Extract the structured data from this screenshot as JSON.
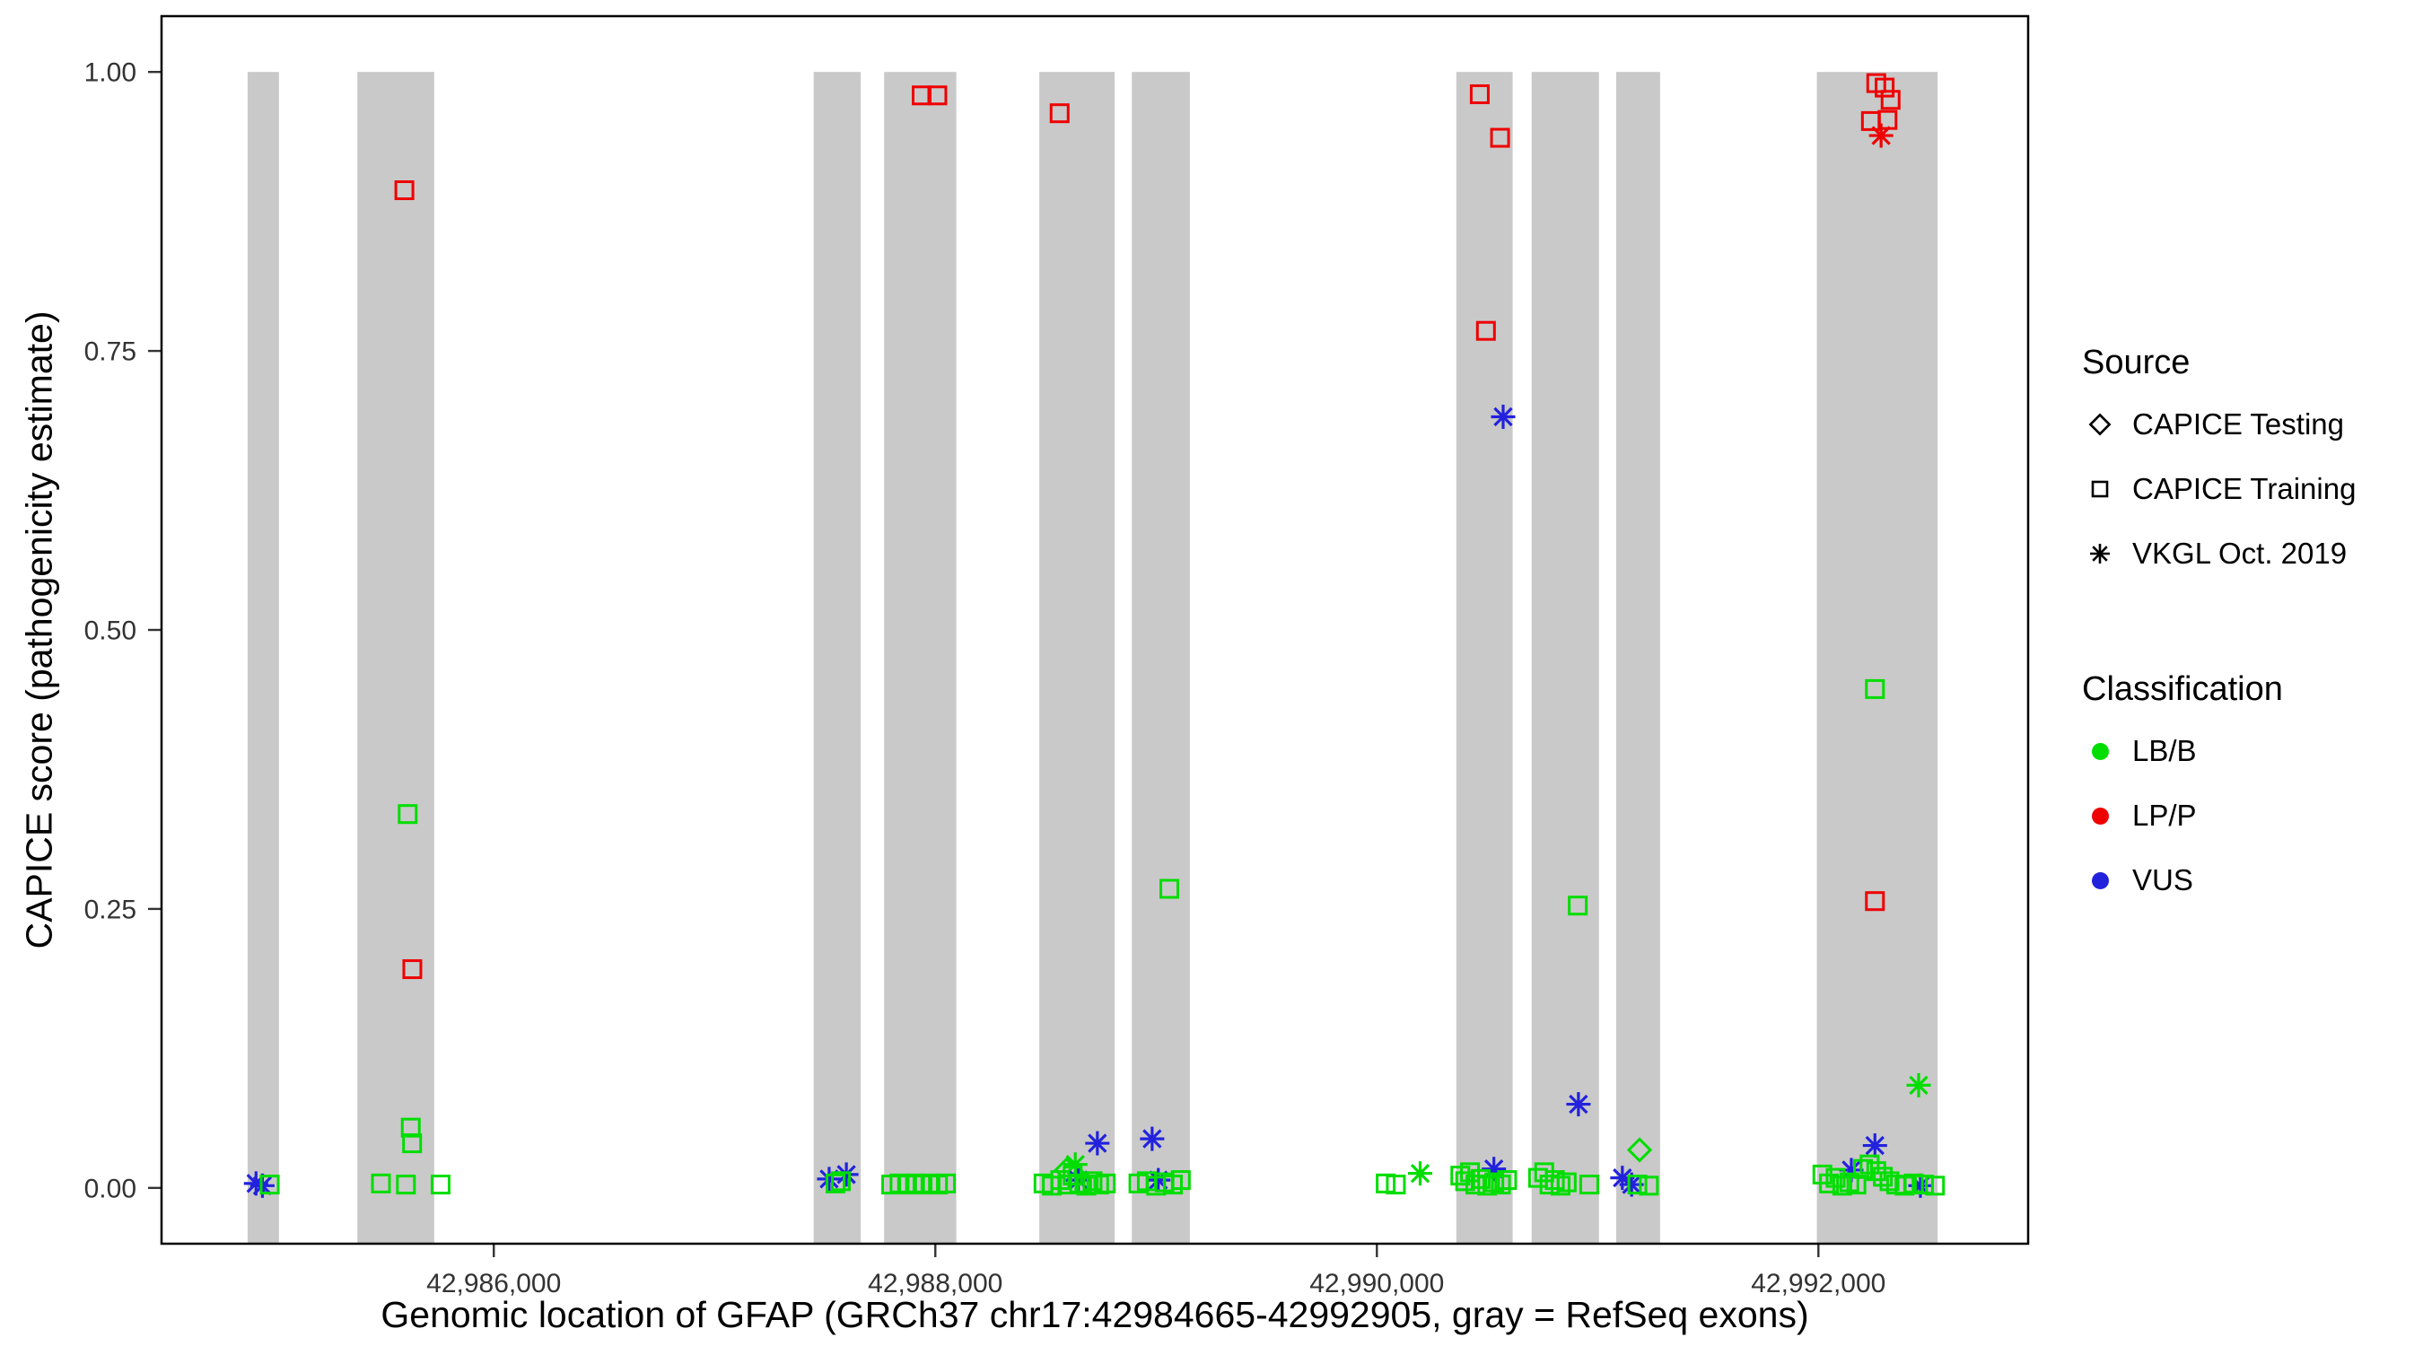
{
  "figure": {
    "xlabel": "Genomic location of GFAP (GRCh37 chr17:42984665-42992905, gray = RefSeq exons)",
    "ylabel": "CAPICE score (pathogenicity estimate)"
  },
  "legend": {
    "source_title": "Source",
    "source_items": [
      {
        "label": "CAPICE Testing",
        "shape": "diamond"
      },
      {
        "label": "CAPICE Training",
        "shape": "square"
      },
      {
        "label": "VKGL Oct. 2019",
        "shape": "asterisk"
      }
    ],
    "class_title": "Classification",
    "class_items": [
      {
        "label": "LB/B"
      },
      {
        "label": "LP/P"
      },
      {
        "label": "VUS"
      }
    ]
  },
  "chart_data": {
    "type": "scatter",
    "title": "",
    "xlabel": "Genomic location of GFAP (GRCh37 chr17:42984665-42992905, gray = RefSeq exons)",
    "ylabel": "CAPICE score (pathogenicity estimate)",
    "xlim": [
      42984495,
      42992950
    ],
    "ylim": [
      -0.05,
      1.05
    ],
    "grid": false,
    "legend_position": "right",
    "x_ticks": [
      {
        "value": 42986000,
        "label": "42,986,000"
      },
      {
        "value": 42988000,
        "label": "42,988,000"
      },
      {
        "value": 42990000,
        "label": "42,990,000"
      },
      {
        "value": 42992000,
        "label": "42,992,000"
      }
    ],
    "y_ticks": [
      {
        "value": 0.0,
        "label": "0.00"
      },
      {
        "value": 0.25,
        "label": "0.25"
      },
      {
        "value": 0.5,
        "label": "0.50"
      },
      {
        "value": 0.75,
        "label": "0.75"
      },
      {
        "value": 1.0,
        "label": "1.00"
      }
    ],
    "exon_color": "#C9C9C9",
    "exons": [
      [
        42984885,
        42985027
      ],
      [
        42985382,
        42985730
      ],
      [
        42987449,
        42987662
      ],
      [
        42987768,
        42988095
      ],
      [
        42988471,
        42988812
      ],
      [
        42988890,
        42989153
      ],
      [
        42990360,
        42990615
      ],
      [
        42990701,
        42991006
      ],
      [
        42991084,
        42991283
      ],
      [
        42991993,
        42992540
      ]
    ],
    "shape_by_source": {
      "testing": "diamond",
      "training": "square",
      "vkgl": "asterisk"
    },
    "source_labels": {
      "testing": "CAPICE Testing",
      "training": "CAPICE Training",
      "vkgl": "VKGL Oct. 2019"
    },
    "color_by_class": {
      "LB/B": "#00DD00",
      "LP/P": "#EE0000",
      "VUS": "#2222DD"
    },
    "points": [
      [
        42985595,
        0.894,
        "training",
        "LP/P"
      ],
      [
        42985631,
        0.196,
        "training",
        "LP/P"
      ],
      [
        42987938,
        0.979,
        "training",
        "LP/P"
      ],
      [
        42988009,
        0.979,
        "training",
        "LP/P"
      ],
      [
        42988563,
        0.963,
        "training",
        "LP/P"
      ],
      [
        42990466,
        0.98,
        "training",
        "LP/P"
      ],
      [
        42990558,
        0.941,
        "training",
        "LP/P"
      ],
      [
        42990494,
        0.768,
        "training",
        "LP/P"
      ],
      [
        42992262,
        0.99,
        "training",
        "LP/P"
      ],
      [
        42992300,
        0.986,
        "training",
        "LP/P"
      ],
      [
        42992327,
        0.975,
        "training",
        "LP/P"
      ],
      [
        42992313,
        0.957,
        "training",
        "LP/P"
      ],
      [
        42992238,
        0.956,
        "training",
        "LP/P"
      ],
      [
        42992256,
        0.257,
        "training",
        "LP/P"
      ],
      [
        42992284,
        0.943,
        "vkgl",
        "LP/P"
      ],
      [
        42991190,
        0.034,
        "testing",
        "LB/B"
      ],
      [
        42988594,
        0.016,
        "testing",
        "LB/B"
      ],
      [
        42988634,
        0.021,
        "vkgl",
        "LB/B"
      ],
      [
        42990196,
        0.013,
        "vkgl",
        "LB/B"
      ],
      [
        42992454,
        0.092,
        "vkgl",
        "LB/B"
      ],
      [
        42984923,
        0.004,
        "vkgl",
        "VUS"
      ],
      [
        42984952,
        0.002,
        "vkgl",
        "VUS"
      ],
      [
        42987519,
        0.008,
        "vkgl",
        "VUS"
      ],
      [
        42987597,
        0.012,
        "vkgl",
        "VUS"
      ],
      [
        42988648,
        0.007,
        "vkgl",
        "VUS"
      ],
      [
        42988734,
        0.04,
        "vkgl",
        "VUS"
      ],
      [
        42988982,
        0.044,
        "vkgl",
        "VUS"
      ],
      [
        42989010,
        0.007,
        "vkgl",
        "VUS"
      ],
      [
        42990530,
        0.017,
        "vkgl",
        "VUS"
      ],
      [
        42990572,
        0.691,
        "vkgl",
        "VUS"
      ],
      [
        42990913,
        0.075,
        "vkgl",
        "VUS"
      ],
      [
        42991112,
        0.009,
        "vkgl",
        "VUS"
      ],
      [
        42991154,
        0.003,
        "vkgl",
        "VUS"
      ],
      [
        42992149,
        0.016,
        "vkgl",
        "VUS"
      ],
      [
        42992256,
        0.038,
        "vkgl",
        "VUS"
      ],
      [
        42992462,
        0.002,
        "vkgl",
        "VUS"
      ],
      [
        42985610,
        0.335,
        "training",
        "LB/B"
      ],
      [
        42985624,
        0.054,
        "training",
        "LB/B"
      ],
      [
        42985630,
        0.04,
        "training",
        "LB/B"
      ],
      [
        42984985,
        0.003,
        "training",
        "LB/B"
      ],
      [
        42985489,
        0.004,
        "training",
        "LB/B"
      ],
      [
        42985602,
        0.003,
        "training",
        "LB/B"
      ],
      [
        42985759,
        0.003,
        "training",
        "LB/B"
      ],
      [
        42987548,
        0.004,
        "training",
        "LB/B"
      ],
      [
        42987572,
        0.006,
        "training",
        "LB/B"
      ],
      [
        42987800,
        0.003,
        "training",
        "LB/B"
      ],
      [
        42987838,
        0.004,
        "training",
        "LB/B"
      ],
      [
        42987872,
        0.003,
        "training",
        "LB/B"
      ],
      [
        42987908,
        0.004,
        "training",
        "LB/B"
      ],
      [
        42987942,
        0.003,
        "training",
        "LB/B"
      ],
      [
        42987978,
        0.004,
        "training",
        "LB/B"
      ],
      [
        42988012,
        0.003,
        "training",
        "LB/B"
      ],
      [
        42988048,
        0.004,
        "training",
        "LB/B"
      ],
      [
        42988490,
        0.004,
        "training",
        "LB/B"
      ],
      [
        42988528,
        0.002,
        "training",
        "LB/B"
      ],
      [
        42988566,
        0.007,
        "training",
        "LB/B"
      ],
      [
        42988598,
        0.003,
        "training",
        "LB/B"
      ],
      [
        42988622,
        0.011,
        "training",
        "LB/B"
      ],
      [
        42988652,
        0.004,
        "training",
        "LB/B"
      ],
      [
        42988684,
        0.002,
        "training",
        "LB/B"
      ],
      [
        42988712,
        0.006,
        "training",
        "LB/B"
      ],
      [
        42988742,
        0.003,
        "training",
        "LB/B"
      ],
      [
        42988772,
        0.004,
        "training",
        "LB/B"
      ],
      [
        42988920,
        0.004,
        "training",
        "LB/B"
      ],
      [
        42988958,
        0.006,
        "training",
        "LB/B"
      ],
      [
        42989000,
        0.002,
        "training",
        "LB/B"
      ],
      [
        42989038,
        0.005,
        "training",
        "LB/B"
      ],
      [
        42989076,
        0.003,
        "training",
        "LB/B"
      ],
      [
        42989112,
        0.007,
        "training",
        "LB/B"
      ],
      [
        42989060,
        0.268,
        "training",
        "LB/B"
      ],
      [
        42990040,
        0.004,
        "training",
        "LB/B"
      ],
      [
        42990086,
        0.003,
        "training",
        "LB/B"
      ],
      [
        42990378,
        0.011,
        "training",
        "LB/B"
      ],
      [
        42990400,
        0.006,
        "training",
        "LB/B"
      ],
      [
        42990422,
        0.014,
        "training",
        "LB/B"
      ],
      [
        42990446,
        0.003,
        "training",
        "LB/B"
      ],
      [
        42990470,
        0.008,
        "training",
        "LB/B"
      ],
      [
        42990500,
        0.002,
        "training",
        "LB/B"
      ],
      [
        42990532,
        0.005,
        "training",
        "LB/B"
      ],
      [
        42990562,
        0.003,
        "training",
        "LB/B"
      ],
      [
        42990590,
        0.007,
        "training",
        "LB/B"
      ],
      [
        42990730,
        0.009,
        "training",
        "LB/B"
      ],
      [
        42990758,
        0.014,
        "training",
        "LB/B"
      ],
      [
        42990782,
        0.003,
        "training",
        "LB/B"
      ],
      [
        42990806,
        0.007,
        "training",
        "LB/B"
      ],
      [
        42990832,
        0.002,
        "training",
        "LB/B"
      ],
      [
        42990860,
        0.005,
        "training",
        "LB/B"
      ],
      [
        42990910,
        0.253,
        "training",
        "LB/B"
      ],
      [
        42990962,
        0.003,
        "training",
        "LB/B"
      ],
      [
        42991180,
        0.003,
        "training",
        "LB/B"
      ],
      [
        42991232,
        0.002,
        "training",
        "LB/B"
      ],
      [
        42992018,
        0.012,
        "training",
        "LB/B"
      ],
      [
        42992048,
        0.004,
        "training",
        "LB/B"
      ],
      [
        42992078,
        0.009,
        "training",
        "LB/B"
      ],
      [
        42992108,
        0.002,
        "training",
        "LB/B"
      ],
      [
        42992140,
        0.005,
        "training",
        "LB/B"
      ],
      [
        42992172,
        0.003,
        "training",
        "LB/B"
      ],
      [
        42992202,
        0.017,
        "training",
        "LB/B"
      ],
      [
        42992232,
        0.021,
        "training",
        "LB/B"
      ],
      [
        42992262,
        0.015,
        "training",
        "LB/B"
      ],
      [
        42992292,
        0.01,
        "training",
        "LB/B"
      ],
      [
        42992322,
        0.006,
        "training",
        "LB/B"
      ],
      [
        42992352,
        0.003,
        "training",
        "LB/B"
      ],
      [
        42992390,
        0.002,
        "training",
        "LB/B"
      ],
      [
        42992432,
        0.004,
        "training",
        "LB/B"
      ],
      [
        42992478,
        0.003,
        "training",
        "LB/B"
      ],
      [
        42992528,
        0.002,
        "training",
        "LB/B"
      ],
      [
        42992256,
        0.447,
        "training",
        "LB/B"
      ]
    ]
  }
}
